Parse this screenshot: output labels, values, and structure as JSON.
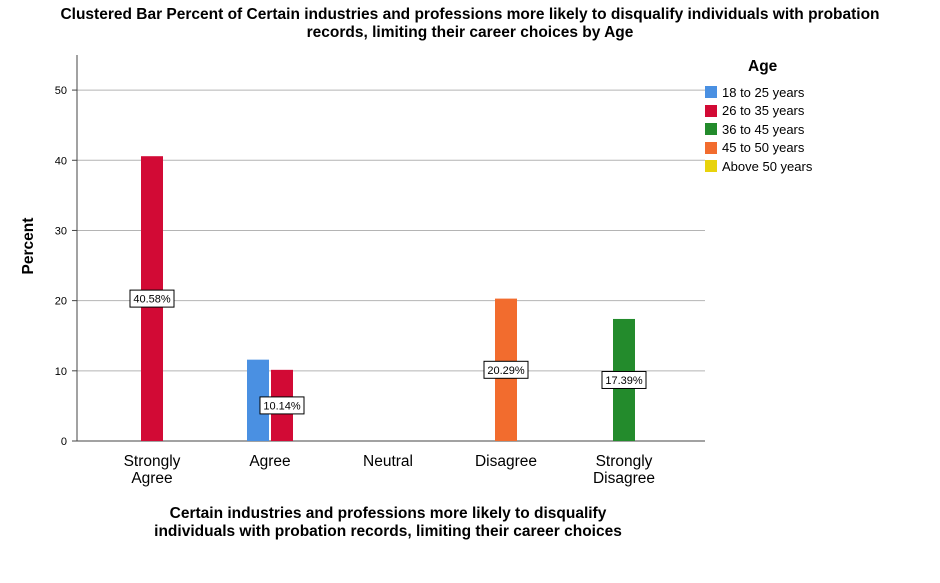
{
  "chart_data": {
    "type": "bar",
    "title_lines": [
      "Clustered Bar Percent of Certain industries and professions more likely to disqualify individuals with probation",
      "records, limiting their career choices by Age"
    ],
    "xlabel_lines": [
      "Certain industries and professions more likely to disqualify",
      "individuals with probation records, limiting their career choices"
    ],
    "ylabel": "Percent",
    "ylim": [
      0,
      55
    ],
    "yticks": [
      0,
      10,
      20,
      30,
      40,
      50
    ],
    "grid": true,
    "legend_title": "Age",
    "legend_position": "top-right",
    "categories": [
      [
        "Strongly",
        "Agree"
      ],
      [
        "Agree"
      ],
      [
        "Neutral"
      ],
      [
        "Disagree"
      ],
      [
        "Strongly",
        "Disagree"
      ]
    ],
    "series": [
      {
        "name": "18 to 25 years",
        "color": "#4a90e2",
        "values": [
          0,
          11.59,
          0,
          0,
          0
        ],
        "labels": [
          null,
          null,
          null,
          null,
          null
        ]
      },
      {
        "name": "26 to 35 years",
        "color": "#d20a35",
        "values": [
          40.58,
          10.14,
          0,
          0,
          0
        ],
        "labels": [
          "40.58%",
          "10.14%",
          null,
          null,
          null
        ]
      },
      {
        "name": "36 to 45 years",
        "color": "#238b2c",
        "values": [
          0,
          0,
          0,
          0,
          17.39
        ],
        "labels": [
          null,
          null,
          null,
          null,
          "17.39%"
        ]
      },
      {
        "name": "45 to 50 years",
        "color": "#f26c2e",
        "values": [
          0,
          0,
          0,
          20.29,
          0
        ],
        "labels": [
          null,
          null,
          null,
          "20.29%",
          null
        ]
      },
      {
        "name": "Above 50 years",
        "color": "#e8d30c",
        "values": [
          0,
          0,
          0,
          0,
          0
        ],
        "labels": [
          null,
          null,
          null,
          null,
          null
        ]
      }
    ]
  }
}
